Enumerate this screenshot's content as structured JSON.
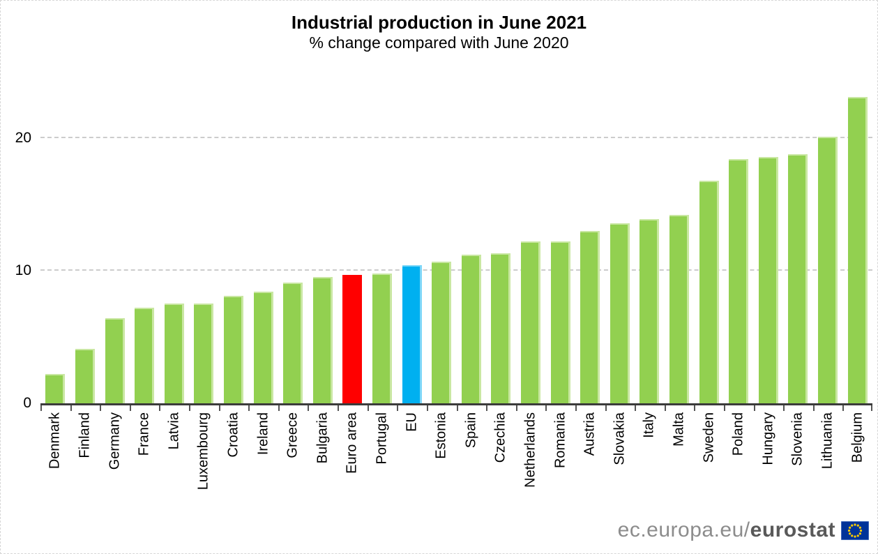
{
  "chart_data": {
    "type": "bar",
    "title": "Industrial production in June 2021",
    "subtitle": "% change compared with June 2020",
    "xlabel": "",
    "ylabel": "",
    "ylim": [
      0,
      24
    ],
    "yticks": [
      0,
      10,
      20
    ],
    "grid": "horizontal dashed at 10 and 20",
    "legend": "none",
    "categories": [
      "Denmark",
      "Finland",
      "Germany",
      "France",
      "Latvia",
      "Luxembourg",
      "Croatia",
      "Ireland",
      "Greece",
      "Bulgaria",
      "Euro area",
      "Portugal",
      "EU",
      "Estonia",
      "Spain",
      "Czechia",
      "Netherlands",
      "Romania",
      "Austria",
      "Slovakia",
      "Italy",
      "Malta",
      "Sweden",
      "Poland",
      "Hungary",
      "Slovenia",
      "Lithuania",
      "Belgium"
    ],
    "values": [
      2.2,
      4.1,
      6.4,
      7.2,
      7.5,
      7.5,
      8.1,
      8.4,
      9.1,
      9.5,
      9.7,
      9.8,
      10.4,
      10.7,
      11.2,
      11.3,
      12.2,
      12.2,
      13.0,
      13.6,
      13.9,
      14.2,
      16.8,
      18.4,
      18.6,
      18.8,
      20.1,
      23.1
    ],
    "bar_color_keys": [
      "green",
      "green",
      "green",
      "green",
      "green",
      "green",
      "green",
      "green",
      "green",
      "green",
      "red",
      "green",
      "blue",
      "green",
      "green",
      "green",
      "green",
      "green",
      "green",
      "green",
      "green",
      "green",
      "green",
      "green",
      "green",
      "green",
      "green",
      "green"
    ]
  },
  "colors": {
    "green": "#92D050",
    "green_highlight": "#C9E7A2",
    "red": "#FF0000",
    "blue": "#00B0F0",
    "blue_highlight": "#7FD7F8",
    "gridline": "#CCCCCC",
    "axis": "#3B3B3B",
    "flag_blue": "#003399",
    "flag_stars": "#FFCC00"
  },
  "footer": {
    "site_prefix": "ec.europa.eu/",
    "site_bold": "eurostat",
    "flag_icon": "eu-flag-icon"
  }
}
